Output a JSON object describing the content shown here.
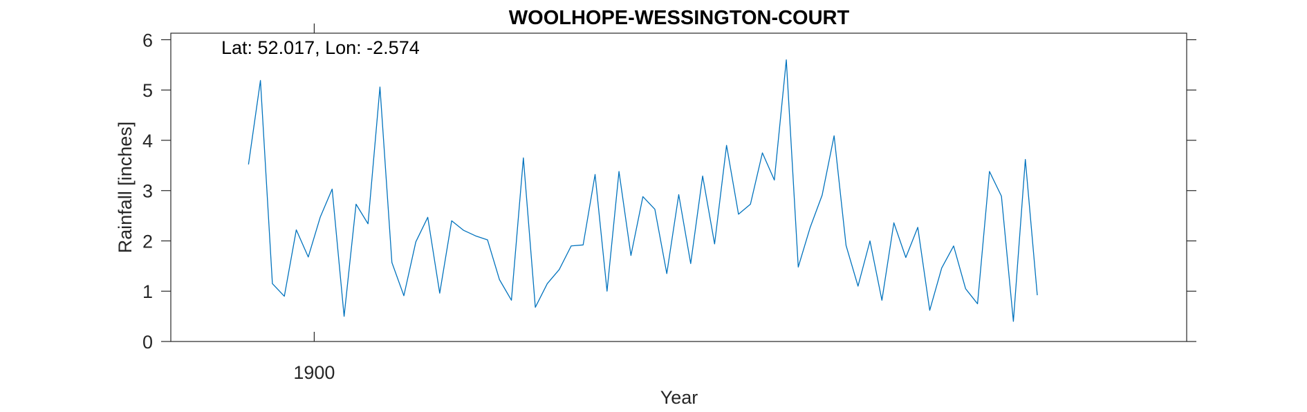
{
  "chart_data": {
    "type": "line",
    "title": "WOOLHOPE-WESSINGTON-COURT",
    "xlabel": "Year",
    "ylabel": "Rainfall [inches]",
    "annotation": "Lat: 52.017, Lon: -2.574",
    "xlim": [
      1894.0,
      1936.5
    ],
    "ylim": [
      0,
      6.13
    ],
    "yticks": [
      0,
      1,
      2,
      3,
      4,
      5,
      6
    ],
    "xticks": [
      {
        "value": 1900.0,
        "label": "1900"
      }
    ],
    "grid": false,
    "line_color": "#0072BD",
    "series": [
      {
        "x": [
          1897.25,
          1897.75,
          1898.25,
          1898.75,
          1899.25,
          1899.75,
          1900.25,
          1900.75,
          1901.25,
          1901.75,
          1902.25,
          1902.75,
          1903.25,
          1903.75,
          1904.25,
          1904.75,
          1905.25,
          1905.75,
          1906.25,
          1906.75,
          1907.25,
          1907.75,
          1908.25,
          1908.75,
          1909.25,
          1909.75,
          1910.25,
          1910.75,
          1911.25,
          1911.75,
          1912.25,
          1912.75,
          1913.25,
          1913.75,
          1914.25,
          1914.75,
          1915.25,
          1915.75,
          1916.25,
          1916.75,
          1917.25,
          1917.75,
          1918.25,
          1918.75,
          1919.25,
          1919.75,
          1920.25,
          1920.75,
          1921.25,
          1921.75,
          1922.25,
          1922.75,
          1923.25,
          1923.75,
          1924.25,
          1924.75,
          1925.25,
          1925.75,
          1926.25,
          1926.75,
          1927.25,
          1927.75,
          1928.25,
          1928.75,
          1929.25,
          1929.75,
          1930.25
        ],
        "values": [
          3.52,
          5.19,
          1.15,
          0.9,
          2.22,
          1.68,
          2.47,
          3.03,
          0.5,
          2.73,
          2.34,
          5.06,
          1.57,
          0.91,
          1.98,
          2.47,
          0.96,
          2.4,
          2.21,
          2.1,
          2.02,
          1.23,
          0.82,
          3.65,
          0.68,
          1.15,
          1.43,
          1.9,
          1.92,
          3.32,
          1.0,
          3.38,
          1.71,
          2.88,
          2.63,
          1.35,
          2.92,
          1.55,
          3.29,
          1.94,
          3.9,
          2.53,
          2.73,
          3.75,
          3.21,
          5.6,
          1.48,
          2.27,
          2.91,
          4.09,
          1.91,
          1.1,
          2.0,
          0.82,
          2.36,
          1.67,
          2.27,
          0.62,
          1.46,
          1.9,
          1.05,
          0.75,
          3.38,
          2.89,
          0.4,
          3.62,
          0.92
        ]
      }
    ]
  }
}
